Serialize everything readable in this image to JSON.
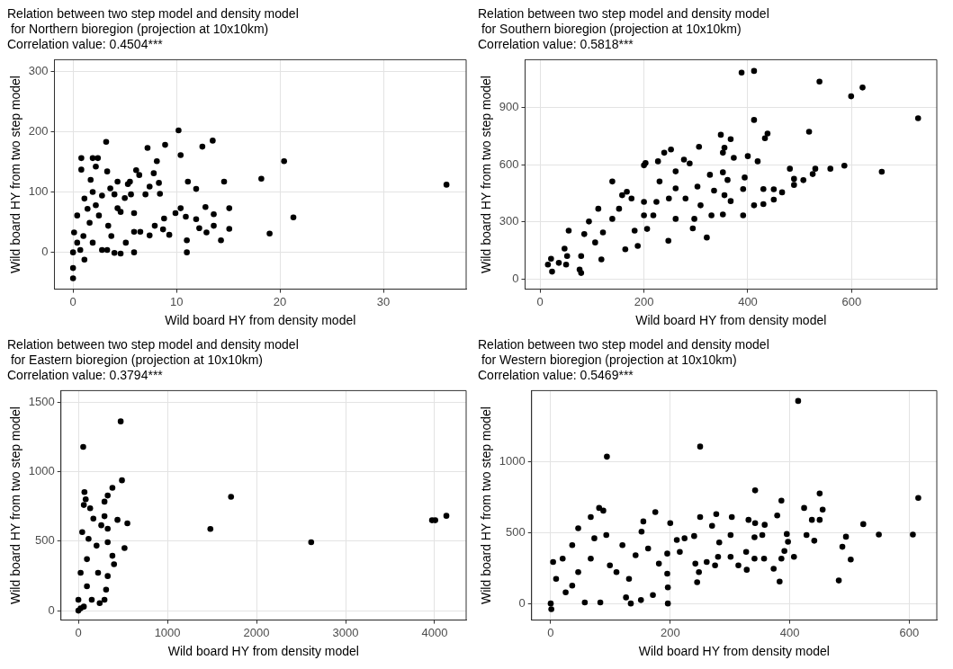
{
  "chart_data": [
    {
      "type": "scatter",
      "title": "Relation between two step model and density model\n for Northern bioregion (projection at 10x10km)",
      "subtitle": "Correlation value: 0.4504***",
      "xlabel": "Wild board HY from density model",
      "ylabel": "Wild board HY from two step model",
      "xlim": [
        -1.8,
        38
      ],
      "ylim": [
        -61,
        319
      ],
      "xticks": [
        0,
        10,
        20,
        30
      ],
      "yticks": [
        0,
        100,
        200,
        300
      ],
      "grid": true,
      "legend": false,
      "marker": "circle",
      "series": [
        {
          "color": "#000000",
          "x": [
            36.1,
            10.2,
            13.5,
            12.5,
            3.2,
            7.2,
            8.9,
            10.4,
            20.4,
            18.2,
            14.6,
            11.1,
            11.9,
            21.3,
            19.0,
            15.1,
            15.1,
            14.3,
            13.6,
            12.8,
            13.6,
            12.9,
            12.2,
            11.9,
            10.9,
            10.4,
            9.9,
            11.0,
            11.0,
            5.9,
            9.3,
            8.8,
            8.7,
            7.9,
            7.4,
            6.5,
            5.9,
            8.1,
            7.8,
            8.3,
            8.4,
            7.4,
            7.0,
            6.1,
            6.4,
            5.5,
            5.3,
            4.3,
            5.6,
            5.0,
            4.0,
            5.9,
            4.6,
            4.3,
            5.1,
            4.6,
            4.0,
            3.3,
            3.6,
            3.3,
            2.2,
            1.9,
            2.4,
            0.8,
            0.8,
            1.7,
            1.1,
            1.9,
            2.8,
            0.4,
            0.1,
            0,
            0,
            0,
            1.1,
            0.7,
            1.9,
            2.5,
            1.6,
            1.0,
            3.4,
            2.2,
            1.4,
            2.8,
            3.7,
            0.4
          ],
          "values": [
            112,
            202,
            185,
            175,
            183,
            173,
            178,
            161,
            151,
            122,
            117,
            117,
            105,
            58,
            31,
            73,
            39,
            20,
            63,
            75,
            44,
            33,
            40,
            55,
            59,
            73,
            65,
            20,
            0,
            0,
            29,
            56,
            38,
            44,
            28,
            34,
            34,
            151,
            131,
            115,
            97,
            109,
            96,
            136,
            128,
            117,
            113,
            117,
            96,
            90,
            96,
            65,
            67,
            73,
            16,
            -2,
            -1,
            4,
            106,
            134,
            142,
            156,
            156,
            156,
            137,
            120,
            89,
            100,
            94,
            61,
            33,
            0,
            -26,
            -43,
            -12,
            4,
            16,
            61,
            49,
            27,
            44,
            78,
            72,
            4,
            27,
            16
          ]
        }
      ]
    },
    {
      "type": "scatter",
      "title": "Relation between two step model and density model\n for Southern bioregion (projection at 10x10km)",
      "subtitle": "Correlation value: 0.5818***",
      "xlabel": "Wild board HY from density model",
      "ylabel": "Wild board HY from two step model",
      "xlim": [
        -29,
        764
      ],
      "ylim": [
        -53,
        1151
      ],
      "xticks": [
        0,
        200,
        400,
        600
      ],
      "yticks": [
        0,
        300,
        600,
        900
      ],
      "grid": true,
      "legend": false,
      "marker": "circle",
      "series": [
        {
          "color": "#000000",
          "x": [
            388,
            412,
            538,
            621,
            599,
            728,
            412,
            518,
            438,
            433,
            348,
            367,
            306,
            252,
            239,
            355,
            352,
            400,
            373,
            419,
            481,
            530,
            559,
            586,
            658,
            525,
            507,
            489,
            489,
            466,
            450,
            450,
            430,
            430,
            412,
            391,
            394,
            361,
            352,
            355,
            367,
            391,
            352,
            335,
            288,
            277,
            200,
            227,
            203,
            321,
            247,
            294,
            297,
            330,
            309,
            327,
            303,
            280,
            261,
            261,
            224,
            230,
            206,
            188,
            182,
            200,
            176,
            167,
            158,
            152,
            164,
            139,
            121,
            118,
            94,
            112,
            106,
            85,
            79,
            79,
            76,
            55,
            47,
            52,
            50,
            36,
            21,
            15,
            23,
            200,
            218,
            248,
            261,
            139
          ],
          "values": [
            1083,
            1092,
            1036,
            1005,
            959,
            844,
            835,
            773,
            764,
            739,
            757,
            734,
            694,
            680,
            663,
            689,
            663,
            645,
            636,
            618,
            579,
            579,
            579,
            595,
            563,
            551,
            519,
            526,
            494,
            455,
            417,
            471,
            472,
            393,
            387,
            472,
            533,
            520,
            560,
            440,
            409,
            334,
            339,
            464,
            607,
            627,
            597,
            618,
            609,
            218,
            201,
            266,
            316,
            334,
            387,
            547,
            485,
            423,
            476,
            316,
            405,
            512,
            263,
            174,
            254,
            334,
            423,
            458,
            440,
            369,
            156,
            316,
            245,
            103,
            302,
            369,
            192,
            236,
            121,
            32,
            50,
            254,
            160,
            121,
            76,
            85,
            107,
            76,
            39,
            405,
            334,
            423,
            565,
            512
          ]
        }
      ]
    },
    {
      "type": "scatter",
      "title": "Relation between two step model and density model\n for Eastern bioregion (projection at 10x10km)",
      "subtitle": "Correlation value: 0.3794***",
      "xlabel": "Wild board HY from density model",
      "ylabel": "Wild board HY from two step model",
      "xlim": [
        -196,
        4354
      ],
      "ylim": [
        -68,
        1585
      ],
      "xticks": [
        0,
        1000,
        2000,
        3000,
        4000
      ],
      "yticks": [
        0,
        500,
        1000,
        1500
      ],
      "grid": true,
      "legend": false,
      "marker": "circle",
      "series": [
        {
          "color": "#000000",
          "x": [
            475,
            54,
            489,
            382,
            68,
            82,
            1714,
            329,
            293,
            4132,
            3971,
            4007,
            1482,
            2614,
            439,
            550,
            518,
            293,
            329,
            329,
            382,
            400,
            329,
            311,
            293,
            239,
            0,
            0,
            25,
            43,
            61,
            132,
            114,
            96,
            96,
            61,
            168,
            204,
            221,
            150,
            25,
            257
          ],
          "values": [
            1363,
            1180,
            939,
            885,
            854,
            802,
            820,
            829,
            785,
            683,
            651,
            651,
            588,
            493,
            654,
            629,
            451,
            680,
            590,
            493,
            395,
            334,
            249,
            151,
            78,
            54,
            0,
            78,
            273,
            566,
            761,
            737,
            517,
            371,
            176,
            29,
            663,
            468,
            273,
            78,
            17,
            615
          ]
        }
      ]
    },
    {
      "type": "scatter",
      "title": "Relation between two step model and density model\n for Western bioregion (projection at 10x10km)",
      "subtitle": "Correlation value: 0.5469***",
      "xlabel": "Wild board HY from density model",
      "ylabel": "Wild board HY from two step model",
      "xlim": [
        -32,
        646
      ],
      "ylim": [
        -117,
        1502
      ],
      "xticks": [
        0,
        200,
        400,
        600
      ],
      "yticks": [
        0,
        500,
        1000
      ],
      "grid": true,
      "legend": false,
      "marker": "circle",
      "series": [
        {
          "color": "#000000",
          "x": [
            414,
            250,
            94,
            342,
            450,
            615,
            386,
            424,
            455,
            81,
            88,
            67,
            175,
            155,
            250,
            277,
            303,
            331,
            342,
            358,
            379,
            437,
            450,
            523,
            549,
            606,
            494,
            488,
            502,
            482,
            395,
            397,
            391,
            407,
            386,
            373,
            383,
            428,
            441,
            341,
            354,
            341,
            357,
            327,
            328,
            314,
            301,
            301,
            282,
            270,
            280,
            275,
            261,
            245,
            248,
            242,
            240,
            224,
            211,
            200,
            196,
            196,
            195,
            181,
            171,
            151,
            134,
            126,
            152,
            142,
            120,
            99,
            93,
            73,
            46,
            36,
            20,
            4,
            9,
            0,
            1,
            25,
            57,
            83,
            46,
            67,
            110,
            131,
            163,
            195,
            216,
            36
          ],
          "values": [
            1429,
            1107,
            1036,
            798,
            776,
            745,
            726,
            674,
            662,
            674,
            655,
            610,
            645,
            579,
            610,
            631,
            610,
            590,
            567,
            555,
            621,
            590,
            590,
            560,
            486,
            486,
            471,
            400,
            310,
            162,
            490,
            436,
            371,
            329,
            317,
            245,
            155,
            483,
            443,
            467,
            483,
            317,
            317,
            364,
            238,
            269,
            329,
            483,
            431,
            548,
            329,
            269,
            293,
            150,
            221,
            281,
            476,
            460,
            448,
            567,
            114,
            0,
            352,
            281,
            60,
            24,
            0,
            43,
            507,
            340,
            412,
            269,
            483,
            460,
            531,
            412,
            317,
            293,
            174,
            0,
            -40,
            79,
            7,
            7,
            221,
            317,
            221,
            174,
            388,
            210,
            364,
            126
          ]
        }
      ]
    }
  ]
}
